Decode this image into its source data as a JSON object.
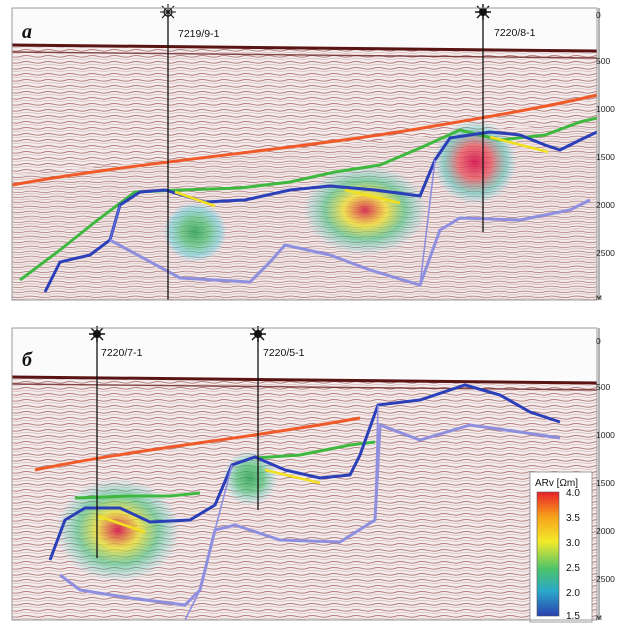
{
  "panels": [
    {
      "letter": "а",
      "wells": [
        {
          "name": "7219/9-1",
          "symbol": "open-star"
        },
        {
          "name": "7220/8-1",
          "symbol": "filled-star"
        }
      ],
      "depth_ticks": [
        "0",
        "500",
        "1000",
        "1500",
        "2000",
        "2500"
      ],
      "depth_unit": "м"
    },
    {
      "letter": "б",
      "wells": [
        {
          "name": "7220/7-1",
          "symbol": "filled-star"
        },
        {
          "name": "7220/5-1",
          "symbol": "filled-star"
        }
      ],
      "depth_ticks": [
        "0",
        "500",
        "1000",
        "1500",
        "2000",
        "2500"
      ],
      "depth_unit": "м"
    }
  ],
  "colorbar": {
    "title": "ARv [Ωm]",
    "ticks": [
      "4.0",
      "3.5",
      "3.0",
      "2.5",
      "2.0",
      "1.5"
    ],
    "colors": [
      "#e8202a",
      "#f7a21b",
      "#f3ea2a",
      "#4cc36a",
      "#2aa8c8",
      "#2a3fb0"
    ]
  },
  "horizon_colors": {
    "orange": "#f05a28",
    "green": "#3fb83f",
    "blue": "#2b3fb8",
    "light_blue": "#8f8fe0",
    "yellow": "#f0e020"
  }
}
